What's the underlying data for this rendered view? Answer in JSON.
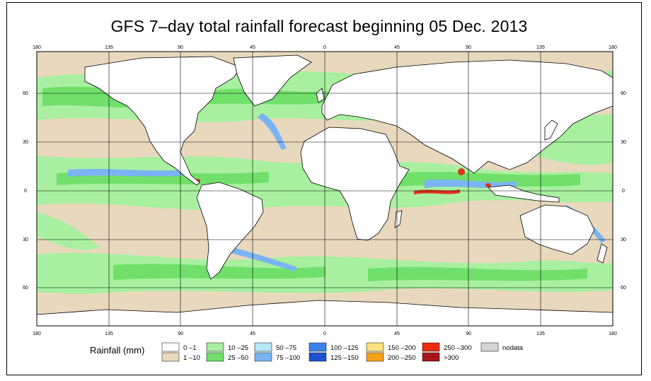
{
  "title": "GFS 7–day total rainfall forecast beginning 05 Dec. 2013",
  "map": {
    "x_ticks": [
      "180",
      "135",
      "90",
      "45",
      "0",
      "45",
      "90",
      "135",
      "180"
    ],
    "y_ticks": [
      "60",
      "30",
      "0",
      "30",
      "60"
    ],
    "colors": {
      "ocean_dry": "#e8d8bd",
      "land_dry": "#ffffff",
      "green_light": "#a8f0a0",
      "green": "#7fe87a",
      "cyan": "#aee6f0",
      "blue": "#4f86e6",
      "red": "#e0321c",
      "coast": "#000000"
    }
  },
  "legend": {
    "title": "Rainfall (mm)",
    "items": [
      {
        "label": "0 –1",
        "color": "#ffffff"
      },
      {
        "label": "1 –10",
        "color": "#e8d8bd"
      },
      {
        "label": "10 –25",
        "color": "#a8f0a0"
      },
      {
        "label": "25 –50",
        "color": "#70e06a"
      },
      {
        "label": "50 –75",
        "color": "#b4e8f8"
      },
      {
        "label": "75 –100",
        "color": "#7ab4f4"
      },
      {
        "label": "100 –125",
        "color": "#3c82ec"
      },
      {
        "label": "125 –150",
        "color": "#1e50d2"
      },
      {
        "label": "150 –200",
        "color": "#fce080"
      },
      {
        "label": "200 –250",
        "color": "#f6a21a"
      },
      {
        "label": "250 –300",
        "color": "#ee2a12"
      },
      {
        "label": ">300",
        "color": "#a8141a"
      },
      {
        "label": "nodata",
        "color": "#d4d4d4"
      }
    ]
  }
}
